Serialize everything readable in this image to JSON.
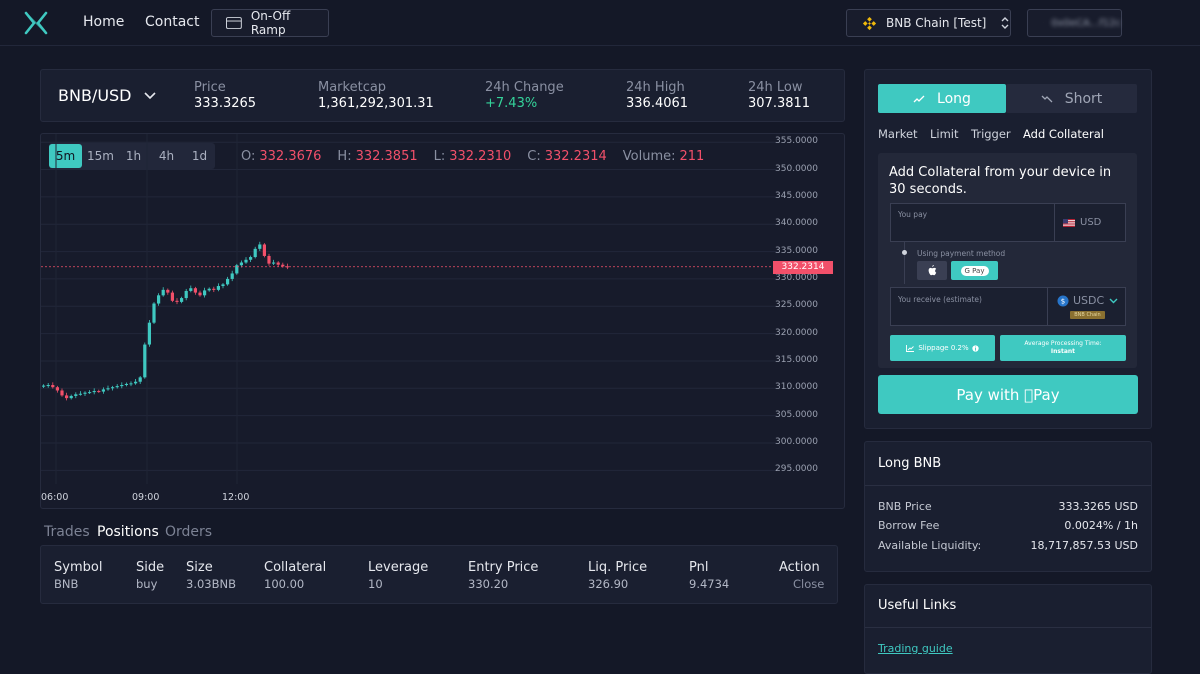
{
  "nav": {
    "links": [
      "Home",
      "Contact"
    ],
    "ramp_label": "On-Off Ramp",
    "chain_label": "BNB Chain [Test]",
    "wallet_label": "0x0eCA...f12c"
  },
  "stats": {
    "pair": "BNB/USD",
    "price_label": "Price",
    "price": "333.3265",
    "marketcap_label": "Marketcap",
    "marketcap": "1,361,292,301.31",
    "change_label": "24h Change",
    "change": "+7.43%",
    "high_label": "24h High",
    "high": "336.4061",
    "low_label": "24h Low",
    "low": "307.3811"
  },
  "chart_toolbar": {
    "timeframes": [
      "5m",
      "15m",
      "1h",
      "4h",
      "1d"
    ],
    "active_timeframe": "5m",
    "ohlc": {
      "o_label": "O:",
      "o": "332.3676",
      "h_label": "H:",
      "h": "332.3851",
      "l_label": "L:",
      "l": "332.2310",
      "c_label": "C:",
      "c": "332.2314",
      "vol_label": "Volume:",
      "vol": "211"
    }
  },
  "chart_data": {
    "type": "candlestick",
    "y_ticks": [
      "355.0000",
      "350.0000",
      "345.0000",
      "340.0000",
      "335.0000",
      "330.0000",
      "325.0000",
      "320.0000",
      "315.0000",
      "310.0000",
      "305.0000",
      "300.0000",
      "295.0000"
    ],
    "x_ticks": [
      "06:00",
      "09:00",
      "12:00"
    ],
    "last_price_label": "332.2314",
    "last_price": 332.2314,
    "ylim": [
      292.5,
      356.5
    ],
    "close_series": [
      310.5,
      310.6,
      310.2,
      309.6,
      308.7,
      308.2,
      308.6,
      308.9,
      309.0,
      309.2,
      309.3,
      309.5,
      309.4,
      309.8,
      310.0,
      310.2,
      310.4,
      310.6,
      310.8,
      310.9,
      311.2,
      312.0,
      318.0,
      322.0,
      325.5,
      327.0,
      328.0,
      327.5,
      326.0,
      325.8,
      326.5,
      327.8,
      328.3,
      327.5,
      327.0,
      327.9,
      328.2,
      328.0,
      328.7,
      329.0,
      330.0,
      331.0,
      332.5,
      333.0,
      333.5,
      334.0,
      335.5,
      336.3,
      334.2,
      332.8,
      333.0,
      332.6,
      332.3,
      332.2
    ]
  },
  "bottom_tabs": {
    "tabs": [
      "Trades",
      "Positions",
      "Orders"
    ],
    "active": "Positions"
  },
  "positions": {
    "headers": [
      "Symbol",
      "Side",
      "Size",
      "Collateral",
      "Leverage",
      "Entry Price",
      "Liq. Price",
      "Pnl",
      "Action"
    ],
    "row": [
      "BNB",
      "buy",
      "3.03BNB",
      "100.00",
      "10",
      "330.20",
      "326.90",
      "9.4734",
      "Close"
    ]
  },
  "trade_panel": {
    "long_label": "Long",
    "short_label": "Short",
    "order_tabs": [
      "Market",
      "Limit",
      "Trigger",
      "Add Collateral"
    ],
    "collateral_title": "Add Collateral from your device in 30 seconds.",
    "you_pay_label": "You pay",
    "pay_currency": "USD",
    "payment_method_label": "Using payment method",
    "gpay_label": "G Pay",
    "you_receive_label": "You receive (estimate)",
    "receive_currency": "USDC",
    "receive_chain": "BNB Chain",
    "slippage_label": "Slippage 0.2%",
    "processing_label": "Average Processing Time:",
    "processing_value": "Instant",
    "pay_button_label": "Pay with Pay",
    "accent": "#3fc9c1"
  },
  "long_info": {
    "title": "Long BNB",
    "rows": [
      {
        "label": "BNB Price",
        "value": "333.3265 USD"
      },
      {
        "label": "Borrow Fee",
        "value": "0.0024% / 1h"
      },
      {
        "label": "Available Liquidity:",
        "value": "18,717,857.53 USD"
      }
    ]
  },
  "useful_links": {
    "title": "Useful Links",
    "link": "Trading guide"
  }
}
